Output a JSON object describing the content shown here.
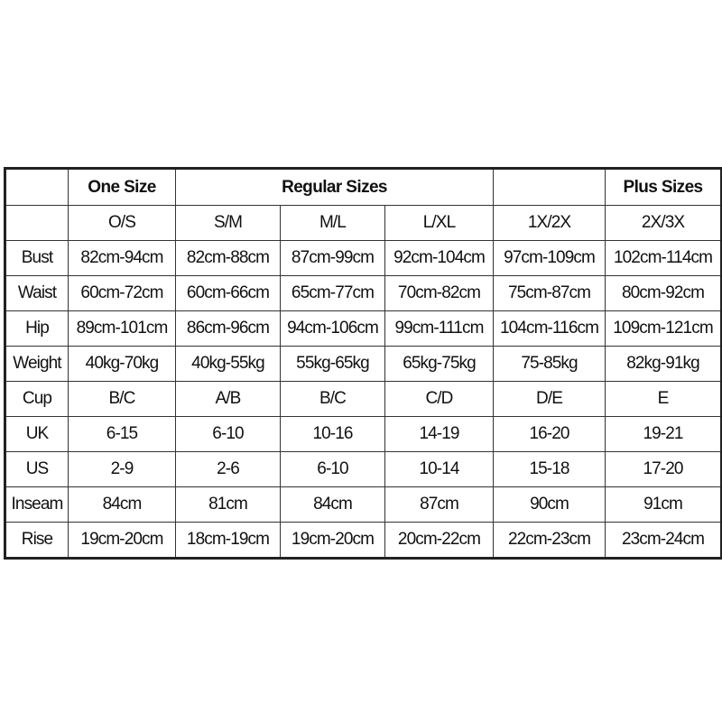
{
  "header_groups": {
    "one_size": "One Size",
    "regular_sizes": "Regular Sizes",
    "plus_sizes": "Plus Sizes"
  },
  "sizes": [
    "O/S",
    "S/M",
    "M/L",
    "L/XL",
    "1X/2X",
    "2X/3X"
  ],
  "rows": [
    {
      "label": "Bust",
      "values": [
        "82cm-94cm",
        "82cm-88cm",
        "87cm-99cm",
        "92cm-104cm",
        "97cm-109cm",
        "102cm-114cm"
      ]
    },
    {
      "label": "Waist",
      "values": [
        "60cm-72cm",
        "60cm-66cm",
        "65cm-77cm",
        "70cm-82cm",
        "75cm-87cm",
        "80cm-92cm"
      ]
    },
    {
      "label": "Hip",
      "values": [
        "89cm-101cm",
        "86cm-96cm",
        "94cm-106cm",
        "99cm-111cm",
        "104cm-116cm",
        "109cm-121cm"
      ]
    },
    {
      "label": "Weight",
      "values": [
        "40kg-70kg",
        "40kg-55kg",
        "55kg-65kg",
        "65kg-75kg",
        "75-85kg",
        "82kg-91kg"
      ]
    },
    {
      "label": "Cup",
      "values": [
        "B/C",
        "A/B",
        "B/C",
        "C/D",
        "D/E",
        "E"
      ]
    },
    {
      "label": "UK",
      "values": [
        "6-15",
        "6-10",
        "10-16",
        "14-19",
        "16-20",
        "19-21"
      ]
    },
    {
      "label": "US",
      "values": [
        "2-9",
        "2-6",
        "6-10",
        "10-14",
        "15-18",
        "17-20"
      ]
    },
    {
      "label": "Inseam",
      "values": [
        "84cm",
        "81cm",
        "84cm",
        "87cm",
        "90cm",
        "91cm"
      ]
    },
    {
      "label": "Rise",
      "values": [
        "19cm-20cm",
        "18cm-19cm",
        "19cm-20cm",
        "20cm-22cm",
        "22cm-23cm",
        "23cm-24cm"
      ]
    }
  ]
}
